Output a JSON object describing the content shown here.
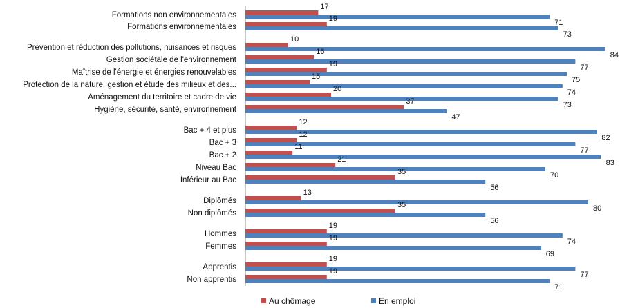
{
  "chart_data": {
    "type": "bar",
    "orientation": "horizontal",
    "grid": false,
    "legend_position": "bottom",
    "title": "",
    "xlabel": "",
    "ylabel": "",
    "xlim": [
      0,
      100
    ],
    "categories": [
      "Formations non environnementales",
      "Formations environnementales",
      "Prévention et réduction des pollutions, nuisances et risques",
      "Gestion sociétale de l'environnement",
      "Maîtrise de l'énergie et énergies renouvelables",
      "Protection de la nature, gestion et étude des milieux et des...",
      "Aménagement du territoire et cadre de vie",
      "Hygiène, sécurité, santé, environnement",
      "Bac + 4 et plus",
      "Bac + 3",
      "Bac + 2",
      "Niveau Bac",
      "Inférieur au Bac",
      "Diplômés",
      "Non diplômés",
      "Hommes",
      "Femmes",
      "Apprentis",
      "Non apprentis"
    ],
    "series": [
      {
        "name": "Au chômage",
        "color": "#c0504d",
        "values": [
          17,
          19,
          10,
          16,
          19,
          15,
          20,
          37,
          12,
          12,
          11,
          21,
          35,
          13,
          35,
          19,
          19,
          19,
          19
        ]
      },
      {
        "name": "En emploi",
        "color": "#4f81bd",
        "values": [
          71,
          73,
          84,
          77,
          75,
          74,
          73,
          47,
          82,
          77,
          83,
          70,
          56,
          80,
          56,
          74,
          69,
          77,
          71
        ]
      }
    ]
  }
}
